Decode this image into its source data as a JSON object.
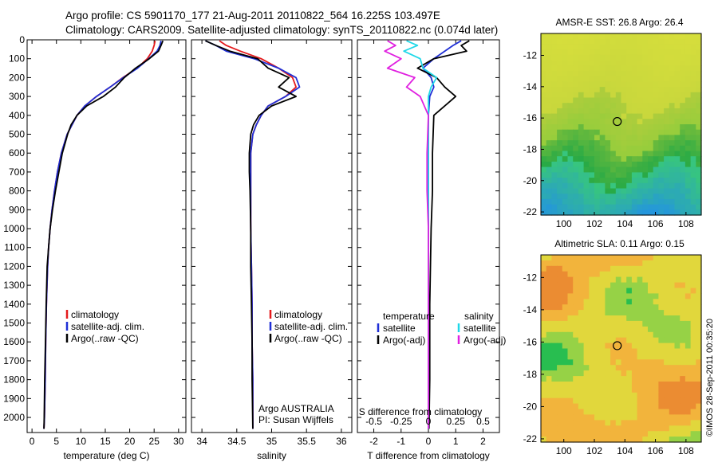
{
  "header": {
    "line1": "Argo profile: CS 5901170_177 21-Aug-2011 20110822_564 16.225S 103.497E",
    "line2": "Climatology: CARS2009. Satellite-adjusted climatology: synTS_20110822.nc (0.074d later)"
  },
  "footer": {
    "argo_center": "Argo AUSTRALIA",
    "pi": "PI: Susan Wijffels",
    "stamp": "©IMOS 28-Sep-2011 00:35:20"
  },
  "colors": {
    "climatology": "#e41a1c",
    "satellite": "#1f2fd6",
    "argo": "#000000",
    "salinity_satellite": "#20d8e8",
    "salinity_argo": "#e020e0"
  },
  "chart_data": [
    {
      "id": "temperature",
      "type": "line",
      "xlabel": "temperature (deg C)",
      "ylabel": "",
      "xlim": [
        -1,
        31.5
      ],
      "ylim": [
        2080,
        0
      ],
      "xticks": [
        0,
        5,
        10,
        15,
        20,
        25,
        30
      ],
      "yticks": [
        0,
        100,
        200,
        300,
        400,
        500,
        600,
        700,
        800,
        900,
        1000,
        1100,
        1200,
        1300,
        1400,
        1500,
        1600,
        1700,
        1800,
        1900,
        2000
      ],
      "legend": [
        "climatology",
        "satellite-adj. clim.",
        "Argo(..raw -QC)"
      ],
      "series": [
        {
          "name": "climatology",
          "color": "#e41a1c",
          "x": [
            25.2,
            25.0,
            24.6,
            23.6,
            21.5,
            18.6,
            16.0,
            13.2,
            10.8,
            9.2,
            8.2,
            7.2,
            6.0,
            5.2,
            4.6,
            4.1,
            3.7,
            3.4,
            3.2,
            2.95,
            2.8,
            2.7,
            2.55,
            2.45
          ],
          "y": [
            5,
            30,
            60,
            100,
            150,
            200,
            250,
            300,
            350,
            400,
            450,
            500,
            600,
            700,
            800,
            900,
            1000,
            1100,
            1200,
            1400,
            1600,
            1800,
            2000,
            2060
          ]
        },
        {
          "name": "satellite-adj. clim.",
          "color": "#1f2fd6",
          "x": [
            26.4,
            26.2,
            25.6,
            23.9,
            21.6,
            18.7,
            16.0,
            13.2,
            10.8,
            9.2,
            8.2,
            7.2,
            6.0,
            5.2,
            4.6,
            4.1,
            3.7,
            3.4,
            3.2,
            2.95,
            2.8,
            2.7,
            2.55,
            2.45
          ],
          "y": [
            5,
            30,
            60,
            100,
            150,
            200,
            250,
            300,
            350,
            400,
            450,
            500,
            600,
            700,
            800,
            900,
            1000,
            1100,
            1200,
            1400,
            1600,
            1800,
            2000,
            2060
          ]
        },
        {
          "name": "Argo(..raw -QC)",
          "color": "#000000",
          "x": [
            26.8,
            26.4,
            25.9,
            24.0,
            21.2,
            18.9,
            17.1,
            14.6,
            11.2,
            9.2,
            8.0,
            7.3,
            6.2,
            5.5,
            4.8,
            4.2,
            3.7,
            3.4,
            3.1,
            2.9,
            2.75,
            2.6,
            2.5,
            2.45
          ],
          "y": [
            5,
            30,
            60,
            100,
            150,
            200,
            250,
            300,
            350,
            400,
            450,
            500,
            600,
            700,
            800,
            900,
            1000,
            1100,
            1200,
            1400,
            1600,
            1800,
            2000,
            2060
          ]
        }
      ]
    },
    {
      "id": "salinity",
      "type": "line",
      "xlabel": "salinity",
      "ylabel": "",
      "xlim": [
        33.85,
        36.15
      ],
      "ylim": [
        2080,
        0
      ],
      "xticks": [
        34,
        34.5,
        35,
        35.5,
        36
      ],
      "legend": [
        "climatology",
        "satellite-adj. clim.",
        "Argo(..raw -QC)"
      ],
      "series": [
        {
          "name": "climatology",
          "color": "#e41a1c",
          "x": [
            34.25,
            34.35,
            34.55,
            34.85,
            35.1,
            35.3,
            35.35,
            35.2,
            34.95,
            34.85,
            34.78,
            34.73,
            34.7,
            34.7,
            34.7,
            34.7,
            34.71,
            34.72,
            34.72,
            34.73,
            34.73
          ],
          "y": [
            5,
            30,
            60,
            100,
            150,
            200,
            250,
            300,
            350,
            400,
            450,
            500,
            600,
            700,
            800,
            1000,
            1200,
            1400,
            1600,
            1800,
            2060
          ]
        },
        {
          "name": "satellite-adj. clim.",
          "color": "#1f2fd6",
          "x": [
            34.05,
            34.2,
            34.35,
            34.75,
            35.1,
            35.35,
            35.4,
            35.2,
            34.95,
            34.85,
            34.78,
            34.73,
            34.7,
            34.7,
            34.7,
            34.7,
            34.71,
            34.72,
            34.72,
            34.73,
            34.73
          ],
          "y": [
            5,
            30,
            60,
            100,
            150,
            200,
            250,
            300,
            350,
            400,
            450,
            500,
            600,
            700,
            800,
            1000,
            1200,
            1400,
            1600,
            1800,
            2060
          ]
        },
        {
          "name": "Argo(..raw -QC)",
          "color": "#000000",
          "x": [
            34.05,
            34.2,
            34.4,
            34.8,
            34.95,
            35.25,
            35.1,
            35.35,
            35.0,
            34.82,
            34.74,
            34.7,
            34.68,
            34.68,
            34.69,
            34.7,
            34.7,
            34.71,
            34.72,
            34.72,
            34.73
          ],
          "y": [
            5,
            30,
            60,
            100,
            150,
            200,
            250,
            300,
            350,
            400,
            450,
            500,
            600,
            700,
            800,
            1000,
            1200,
            1400,
            1600,
            1800,
            2060
          ]
        }
      ]
    },
    {
      "id": "differences",
      "type": "line",
      "xlabel": "T difference from climatology",
      "xlabel_top": "S difference from climatology",
      "xlim": [
        -2.6,
        2.6
      ],
      "ylim": [
        2080,
        0
      ],
      "xticks": [
        -2,
        -1,
        0,
        1,
        2
      ],
      "xticks_top": [
        "-0.5",
        "-0.25",
        "0",
        "0.25",
        "0.5"
      ],
      "legend_groups": [
        "temperature",
        "salinity"
      ],
      "legend": [
        "satellite",
        "Argo(-adj)",
        "satellite",
        "Argo(-adj)"
      ],
      "series": [
        {
          "name": "temperature satellite",
          "color": "#1f2fd6",
          "x": [
            1.2,
            0.9,
            0.6,
            0.2,
            -0.2,
            0.1,
            0.2,
            0.05,
            0.0,
            0.0,
            0.0,
            0.0,
            0.0,
            0.0,
            0.0
          ],
          "y": [
            5,
            30,
            60,
            100,
            150,
            200,
            250,
            300,
            400,
            600,
            800,
            1000,
            1400,
            1800,
            2060
          ]
        },
        {
          "name": "temperature Argo(-adj)",
          "color": "#000000",
          "x": [
            1.5,
            1.2,
            1.4,
            0.2,
            -0.4,
            0.3,
            0.6,
            1.0,
            0.2,
            0.15,
            0.15,
            0.1,
            0.05,
            0.05,
            0.02
          ],
          "y": [
            5,
            30,
            60,
            100,
            150,
            200,
            250,
            300,
            400,
            600,
            800,
            1000,
            1400,
            1800,
            2060
          ]
        },
        {
          "name": "salinity satellite",
          "color": "#20d8e8",
          "x": [
            -0.8,
            -0.4,
            -0.9,
            -0.3,
            -0.2,
            0.3,
            0.1,
            0.0,
            0.0,
            0.0,
            0.0,
            0.0,
            0.0,
            0.0
          ],
          "y": [
            5,
            30,
            60,
            100,
            150,
            200,
            250,
            300,
            400,
            600,
            800,
            1000,
            1400,
            2060
          ]
        },
        {
          "name": "salinity Argo(-adj)",
          "color": "#e020e0",
          "x": [
            -1.5,
            -1.2,
            -1.6,
            -1.0,
            -1.5,
            -0.5,
            -0.8,
            -0.3,
            0.0,
            -0.05,
            -0.05,
            0.0,
            0.0,
            0.0
          ],
          "y": [
            5,
            30,
            60,
            100,
            150,
            200,
            250,
            300,
            400,
            600,
            800,
            1000,
            1400,
            2060
          ]
        }
      ]
    },
    {
      "id": "sst_map",
      "type": "heatmap",
      "title": "AMSR-E SST: 26.8 Argo: 26.4",
      "xlim": [
        98.5,
        109
      ],
      "ylim": [
        -22.2,
        -10.6
      ],
      "xticks": [
        100,
        102,
        104,
        106,
        108
      ],
      "yticks": [
        -12,
        -14,
        -16,
        -18,
        -20,
        -22
      ],
      "marker": {
        "lon": 103.5,
        "lat": -16.225
      }
    },
    {
      "id": "sla_map",
      "type": "heatmap",
      "title": "Altimetric SLA: 0.11 Argo: 0.15",
      "xlim": [
        98.5,
        109
      ],
      "ylim": [
        -22.2,
        -10.6
      ],
      "xticks": [
        100,
        102,
        104,
        106,
        108
      ],
      "yticks": [
        -12,
        -14,
        -16,
        -18,
        -20,
        -22
      ],
      "marker": {
        "lon": 103.5,
        "lat": -16.225
      }
    }
  ]
}
